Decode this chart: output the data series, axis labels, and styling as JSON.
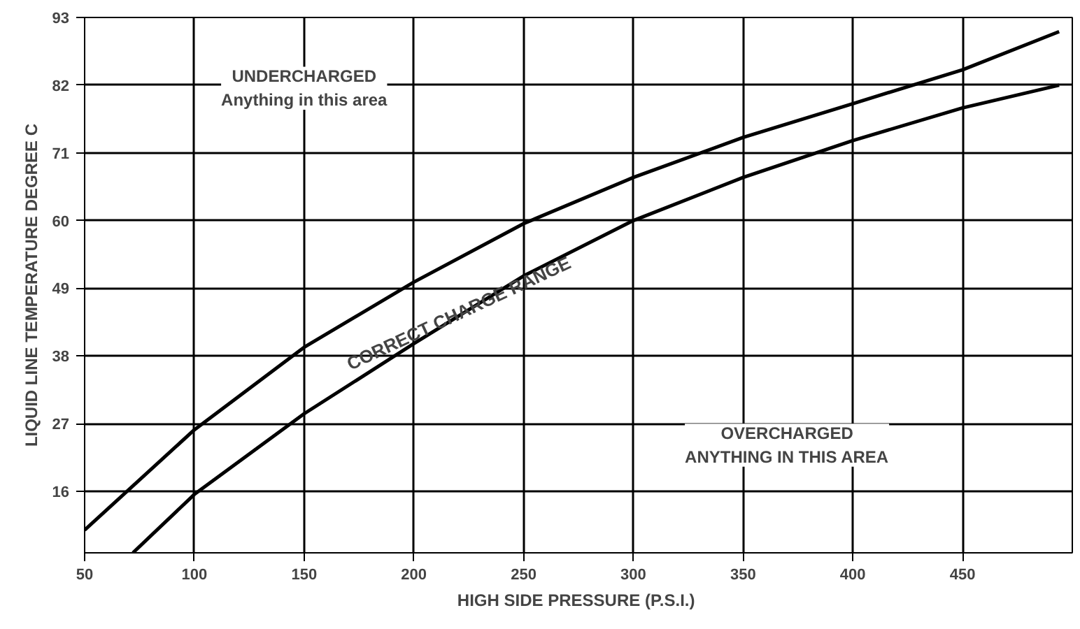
{
  "chart_data": {
    "type": "line",
    "xlabel": "HIGH SIDE  PRESSURE (P.S.I.)",
    "ylabel": "LIQUID LINE TEMPERATURE DEGREE C",
    "xlim": [
      50,
      500
    ],
    "ylim": [
      6,
      93
    ],
    "xticks": [
      50,
      100,
      150,
      200,
      250,
      300,
      350,
      400,
      450
    ],
    "yticks": [
      16,
      27,
      38,
      49,
      60,
      71,
      82,
      93
    ],
    "grid": true,
    "marker": "none",
    "line_style": "solid",
    "series": [
      {
        "color": "#000000",
        "x": [
          50,
          100,
          150,
          200,
          250,
          300,
          350,
          400,
          450,
          494
        ],
        "values": [
          9.7,
          26,
          39.4,
          50,
          59.5,
          67,
          73.5,
          79,
          84.5,
          90.7
        ]
      },
      {
        "color": "#000000",
        "x": [
          72,
          100,
          150,
          200,
          250,
          300,
          350,
          400,
          450,
          494
        ],
        "values": [
          6,
          15.5,
          28.6,
          40,
          51,
          60,
          67,
          73,
          78.3,
          82
        ]
      }
    ],
    "annotations": [
      "UNDERCHARGED\nAnything in this area",
      "CORRECT CHARGE RANGE",
      "OVERCHARGED\nANYTHING IN THIS AREA"
    ]
  }
}
